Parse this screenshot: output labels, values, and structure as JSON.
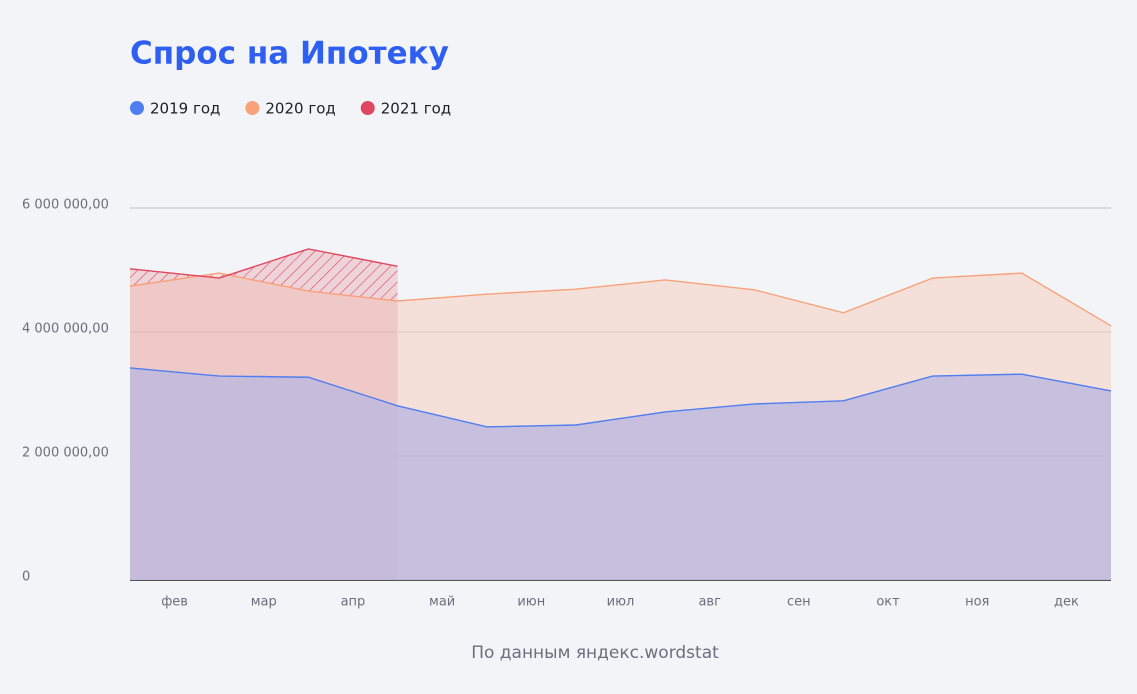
{
  "chart_data": {
    "type": "area",
    "title": "Спрос на Ипотеку",
    "source": "По данным яндекс.wordstat",
    "categories": [
      null,
      "фев",
      "мар",
      "апр",
      "май",
      "июн",
      "июл",
      "авг",
      "сен",
      "окт",
      "ноя",
      "дек"
    ],
    "series": [
      {
        "name": "2019 год",
        "color": "#4f7ef0",
        "values": [
          3420000,
          3290000,
          3270000,
          2810000,
          2470000,
          2500000,
          2710000,
          2840000,
          2890000,
          3290000,
          3320000,
          3050000
        ]
      },
      {
        "name": "2020 год",
        "color": "#f8a27a",
        "values": [
          4740000,
          4950000,
          4660000,
          4500000,
          4610000,
          4690000,
          4840000,
          4680000,
          4310000,
          4870000,
          4950000,
          4100000
        ]
      },
      {
        "name": "2021 год",
        "color": "#e0465f",
        "values": [
          5020000,
          4870000,
          5340000,
          5060000,
          null,
          null,
          null,
          null,
          null,
          null,
          null,
          null
        ]
      }
    ],
    "ylim": [
      0,
      6000000
    ],
    "yticks": [
      0,
      {
        "value": 2000000,
        "label": "2 000 000,00"
      },
      {
        "value": 4000000,
        "label": "4 000 000,00"
      },
      {
        "value": 6000000,
        "label": "6 000 000,00"
      }
    ],
    "grid": true
  }
}
